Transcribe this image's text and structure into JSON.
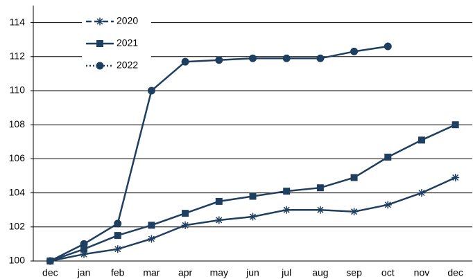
{
  "chart_data": {
    "type": "line",
    "categories": [
      "dec",
      "jan",
      "feb",
      "mar",
      "apr",
      "may",
      "jun",
      "jul",
      "aug",
      "sep",
      "oct",
      "nov",
      "dec"
    ],
    "series": [
      {
        "name": "2020",
        "color": "#1f3f60",
        "marker": "star",
        "line_style": "dashed",
        "values": [
          100,
          100.4,
          100.7,
          101.3,
          102.1,
          102.4,
          102.6,
          103.0,
          103.0,
          102.9,
          103.3,
          104.0,
          104.9
        ]
      },
      {
        "name": "2021",
        "color": "#1f3f60",
        "marker": "square",
        "line_style": "solid",
        "values": [
          100,
          100.7,
          101.5,
          102.1,
          102.8,
          103.5,
          103.8,
          104.1,
          104.3,
          104.9,
          106.1,
          107.1,
          108.0
        ]
      },
      {
        "name": "2022",
        "color": "#1f3f60",
        "marker": "circle",
        "line_style": "dotted",
        "values": [
          100,
          101.0,
          102.2,
          110.0,
          111.7,
          111.8,
          111.9,
          111.9,
          111.9,
          112.3,
          112.6,
          null,
          null
        ]
      }
    ],
    "ylim": [
      100,
      115
    ],
    "yticks": [
      100,
      102,
      104,
      106,
      108,
      110,
      112,
      114
    ],
    "grid": true,
    "legend": "upper left"
  }
}
